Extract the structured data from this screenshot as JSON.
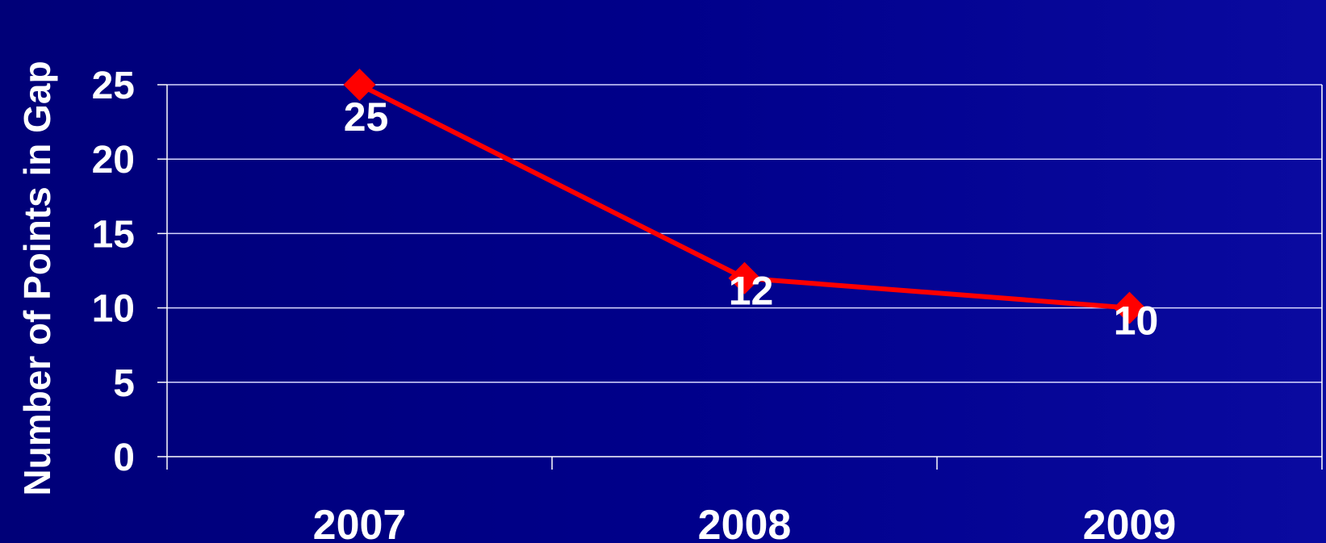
{
  "chart_data": {
    "type": "line",
    "title": "",
    "xlabel": "",
    "ylabel": "Number of Points in Gap",
    "categories": [
      "2007",
      "2008",
      "2009"
    ],
    "series": [
      {
        "values": [
          25,
          12,
          10
        ],
        "color": "#ff0000"
      }
    ],
    "ylim": [
      0,
      25
    ],
    "yticks": [
      0,
      5,
      10,
      15,
      20,
      25
    ],
    "grid": true,
    "marker": "diamond",
    "data_labels": [
      "25",
      "12",
      "10"
    ]
  },
  "colors": {
    "axis": "#ffffff",
    "grid": "#d8d8ff",
    "line": "#ff0000",
    "text": "#ffffff"
  }
}
